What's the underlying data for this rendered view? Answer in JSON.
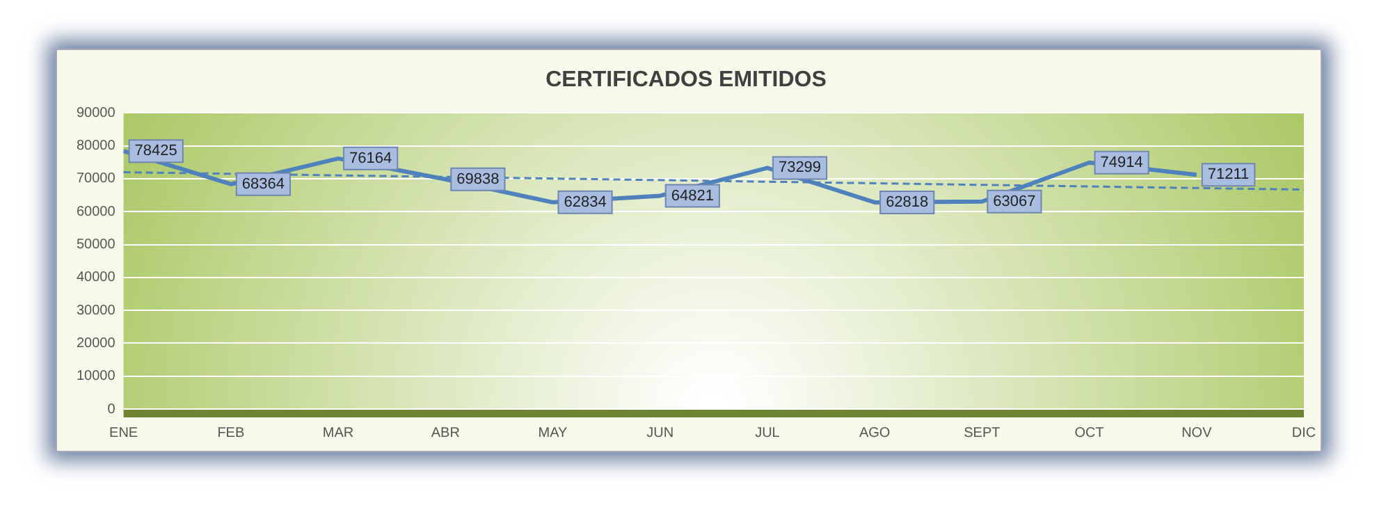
{
  "chart_data": {
    "type": "line",
    "title": "CERTIFICADOS EMITIDOS",
    "categories": [
      "ENE",
      "FEB",
      "MAR",
      "ABR",
      "MAY",
      "JUN",
      "JUL",
      "AGO",
      "SEPT",
      "OCT",
      "NOV",
      "DIC"
    ],
    "series": [
      {
        "color": "#4f81bd",
        "values": [
          78425,
          68364,
          76164,
          69838,
          62834,
          64821,
          73299,
          62818,
          63067,
          74914,
          71211,
          null
        ],
        "value_labels": [
          "78425",
          "68364",
          "76164",
          "69838",
          "62834",
          "64821",
          "73299",
          "62818",
          "63067",
          "74914",
          "71211",
          null
        ]
      },
      {
        "type": "line",
        "color": "#4f81bd",
        "line_style": "dashed",
        "x": [
          "ENE",
          "DIC"
        ],
        "values": [
          72000,
          66700
        ]
      }
    ],
    "ylim": [
      0,
      90000
    ],
    "yticks": [
      0,
      10000,
      20000,
      30000,
      40000,
      50000,
      60000,
      70000,
      80000,
      90000
    ],
    "grid": "y",
    "legend": false,
    "marker": "none",
    "line_style": "solid"
  }
}
